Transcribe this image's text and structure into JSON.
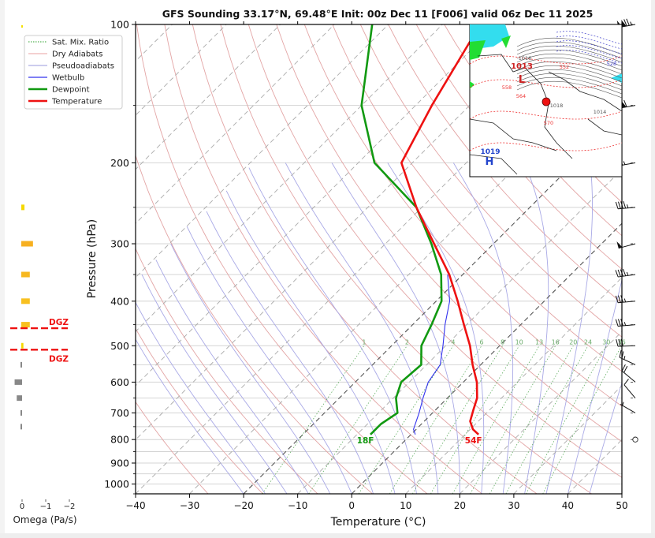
{
  "chart_data": {
    "type": "line",
    "title": "GFS Sounding 33.17°N, 69.48°E Init: 00z Dec 11 [F006] valid 06z Dec 11 2025",
    "xlabel": "Temperature (°C)",
    "ylabel": "Pressure (hPa)",
    "xlim": [
      -40,
      50
    ],
    "ylim_hpa": [
      1050,
      100
    ],
    "y_scale": "log",
    "skew": "skew-T (isotherms slanted 45°)",
    "grid": true,
    "x_ticks": [
      "−40",
      "−30",
      "−20",
      "−10",
      "0",
      "10",
      "20",
      "30",
      "40",
      "50"
    ],
    "x_tick_values": [
      -40,
      -30,
      -20,
      -10,
      0,
      10,
      20,
      30,
      40,
      50
    ],
    "y_ticks": [
      "100",
      "200",
      "300",
      "400",
      "500",
      "600",
      "700",
      "800",
      "900",
      "1000"
    ],
    "y_tick_values": [
      100,
      200,
      300,
      400,
      500,
      600,
      700,
      800,
      900,
      1000
    ],
    "legend": {
      "placement": "top-left",
      "entries": [
        {
          "label": "Sat. Mix. Ratio",
          "color": "#2ca02c",
          "style": "dotted"
        },
        {
          "label": "Dry Adiabats",
          "color": "#e8a0a0",
          "style": "solid"
        },
        {
          "label": "Pseudoadiabats",
          "color": "#9999dd",
          "style": "solid"
        },
        {
          "label": "Wetbulb",
          "color": "#3333ee",
          "style": "solid"
        },
        {
          "label": "Dewpoint",
          "color": "#119911",
          "style": "solid"
        },
        {
          "label": "Temperature",
          "color": "#ee1111",
          "style": "solid"
        }
      ]
    },
    "series": [
      {
        "name": "Temperature",
        "color": "#ee1111",
        "points": [
          {
            "p": 780,
            "t": 12.5
          },
          {
            "p": 760,
            "t": 10.5
          },
          {
            "p": 730,
            "t": 8.5
          },
          {
            "p": 690,
            "t": 7.0
          },
          {
            "p": 650,
            "t": 5.5
          },
          {
            "p": 600,
            "t": 2.5
          },
          {
            "p": 550,
            "t": -1.5
          },
          {
            "p": 500,
            "t": -5.5
          },
          {
            "p": 450,
            "t": -10.5
          },
          {
            "p": 400,
            "t": -16.0
          },
          {
            "p": 350,
            "t": -22.5
          },
          {
            "p": 300,
            "t": -31.0
          },
          {
            "p": 250,
            "t": -41.0
          },
          {
            "p": 200,
            "t": -52.0
          },
          {
            "p": 150,
            "t": -57.0
          },
          {
            "p": 100,
            "t": -63.0
          }
        ]
      },
      {
        "name": "Dewpoint",
        "color": "#119911",
        "points": [
          {
            "p": 780,
            "t": -7.5
          },
          {
            "p": 740,
            "t": -7.5
          },
          {
            "p": 700,
            "t": -6.5
          },
          {
            "p": 650,
            "t": -9.5
          },
          {
            "p": 600,
            "t": -11.5
          },
          {
            "p": 550,
            "t": -11.0
          },
          {
            "p": 500,
            "t": -14.5
          },
          {
            "p": 450,
            "t": -16.5
          },
          {
            "p": 400,
            "t": -19.0
          },
          {
            "p": 350,
            "t": -24.0
          },
          {
            "p": 300,
            "t": -31.5
          },
          {
            "p": 250,
            "t": -41.0
          },
          {
            "p": 200,
            "t": -57.0
          },
          {
            "p": 150,
            "t": -70.0
          },
          {
            "p": 100,
            "t": -83.0
          }
        ]
      },
      {
        "name": "Wetbulb",
        "color": "#3333ee",
        "points": [
          {
            "p": 780,
            "t": 0.8
          },
          {
            "p": 760,
            "t": -0.5
          },
          {
            "p": 700,
            "t": -2.5
          },
          {
            "p": 650,
            "t": -4.5
          },
          {
            "p": 600,
            "t": -6.5
          },
          {
            "p": 550,
            "t": -7.5
          },
          {
            "p": 500,
            "t": -10.5
          },
          {
            "p": 450,
            "t": -14.0
          },
          {
            "p": 400,
            "t": -17.5
          },
          {
            "p": 350,
            "t": -22.8
          }
        ]
      }
    ],
    "annotations": [
      {
        "text": "18F",
        "color": "#119911",
        "p": 800,
        "t": -7.5,
        "meaning": "surface dewpoint"
      },
      {
        "text": "54F",
        "color": "#ee1111",
        "p": 800,
        "t": 12.5,
        "meaning": "surface temperature"
      }
    ],
    "mixing_ratio_labels": [
      "1",
      "2",
      "4",
      "6",
      "8",
      "10",
      "13",
      "16",
      "20",
      "24",
      "30",
      "36"
    ],
    "mixing_ratio_values": [
      1,
      2,
      4,
      6,
      8,
      10,
      13,
      16,
      20,
      24,
      30,
      36
    ],
    "mixing_ratio_label_pressure": 500,
    "omega_panel": {
      "xlabel": "Omega (Pa/s)",
      "x_ticks": [
        "0",
        "−1",
        "−2"
      ],
      "x_tick_values": [
        0,
        -1,
        -2
      ],
      "bars": [
        {
          "p": 250,
          "omega": -0.15,
          "color": "#f5d800"
        },
        {
          "p": 300,
          "omega": -0.55,
          "color": "#f7b020"
        },
        {
          "p": 350,
          "omega": -0.4,
          "color": "#f7b820"
        },
        {
          "p": 400,
          "omega": -0.4,
          "color": "#f8c020"
        },
        {
          "p": 450,
          "omega": -0.4,
          "color": "#f8c020"
        },
        {
          "p": 500,
          "omega": -0.1,
          "color": "#f5d800"
        },
        {
          "p": 550,
          "omega": 0.06,
          "color": "#888888"
        },
        {
          "p": 600,
          "omega": 0.35,
          "color": "#888888"
        },
        {
          "p": 650,
          "omega": 0.25,
          "color": "#888888"
        },
        {
          "p": 700,
          "omega": 0.06,
          "color": "#888888"
        },
        {
          "p": 750,
          "omega": 0.06,
          "color": "#888888"
        }
      ],
      "dgz_lines": [
        {
          "p": 458,
          "label": "DGZ"
        },
        {
          "p": 510,
          "label": "DGZ"
        }
      ],
      "dgz_color": "#ee1111",
      "top_marker": {
        "p": 100,
        "color": "#f5e000"
      }
    },
    "wind_barbs": [
      {
        "p": 100,
        "speed_kt": 125,
        "dir_deg": 260
      },
      {
        "p": 150,
        "speed_kt": 110,
        "dir_deg": 260
      },
      {
        "p": 200,
        "speed_kt": 65,
        "dir_deg": 260
      },
      {
        "p": 250,
        "speed_kt": 45,
        "dir_deg": 265
      },
      {
        "p": 300,
        "speed_kt": 50,
        "dir_deg": 255
      },
      {
        "p": 350,
        "speed_kt": 45,
        "dir_deg": 262
      },
      {
        "p": 400,
        "speed_kt": 35,
        "dir_deg": 265
      },
      {
        "p": 450,
        "speed_kt": 35,
        "dir_deg": 265
      },
      {
        "p": 500,
        "speed_kt": 30,
        "dir_deg": 268
      },
      {
        "p": 550,
        "speed_kt": 25,
        "dir_deg": 295
      },
      {
        "p": 600,
        "speed_kt": 20,
        "dir_deg": 310
      },
      {
        "p": 650,
        "speed_kt": 10,
        "dir_deg": 320
      },
      {
        "p": 700,
        "speed_kt": 5,
        "dir_deg": 300
      },
      {
        "p": 800,
        "speed_kt": 0,
        "dir_deg": 0,
        "calm": true
      }
    ],
    "inset_map": {
      "labels": [
        {
          "text": "1013",
          "color": "#cc2222"
        },
        {
          "text": "L",
          "color": "#cc2222"
        },
        {
          "text": "1019",
          "color": "#2244cc"
        },
        {
          "text": "H",
          "color": "#2244cc"
        },
        {
          "text": "1018",
          "color": "#555555"
        },
        {
          "text": "1014",
          "color": "#555555"
        },
        {
          "text": "1016",
          "color": "#555555"
        },
        {
          "text": "552",
          "color": "#ee3333"
        },
        {
          "text": "558",
          "color": "#ee3333"
        },
        {
          "text": "564",
          "color": "#ee3333"
        },
        {
          "text": "570",
          "color": "#ee3333"
        },
        {
          "text": "528",
          "color": "#4444cc"
        }
      ],
      "location_marker_color": "#ee1111"
    }
  }
}
